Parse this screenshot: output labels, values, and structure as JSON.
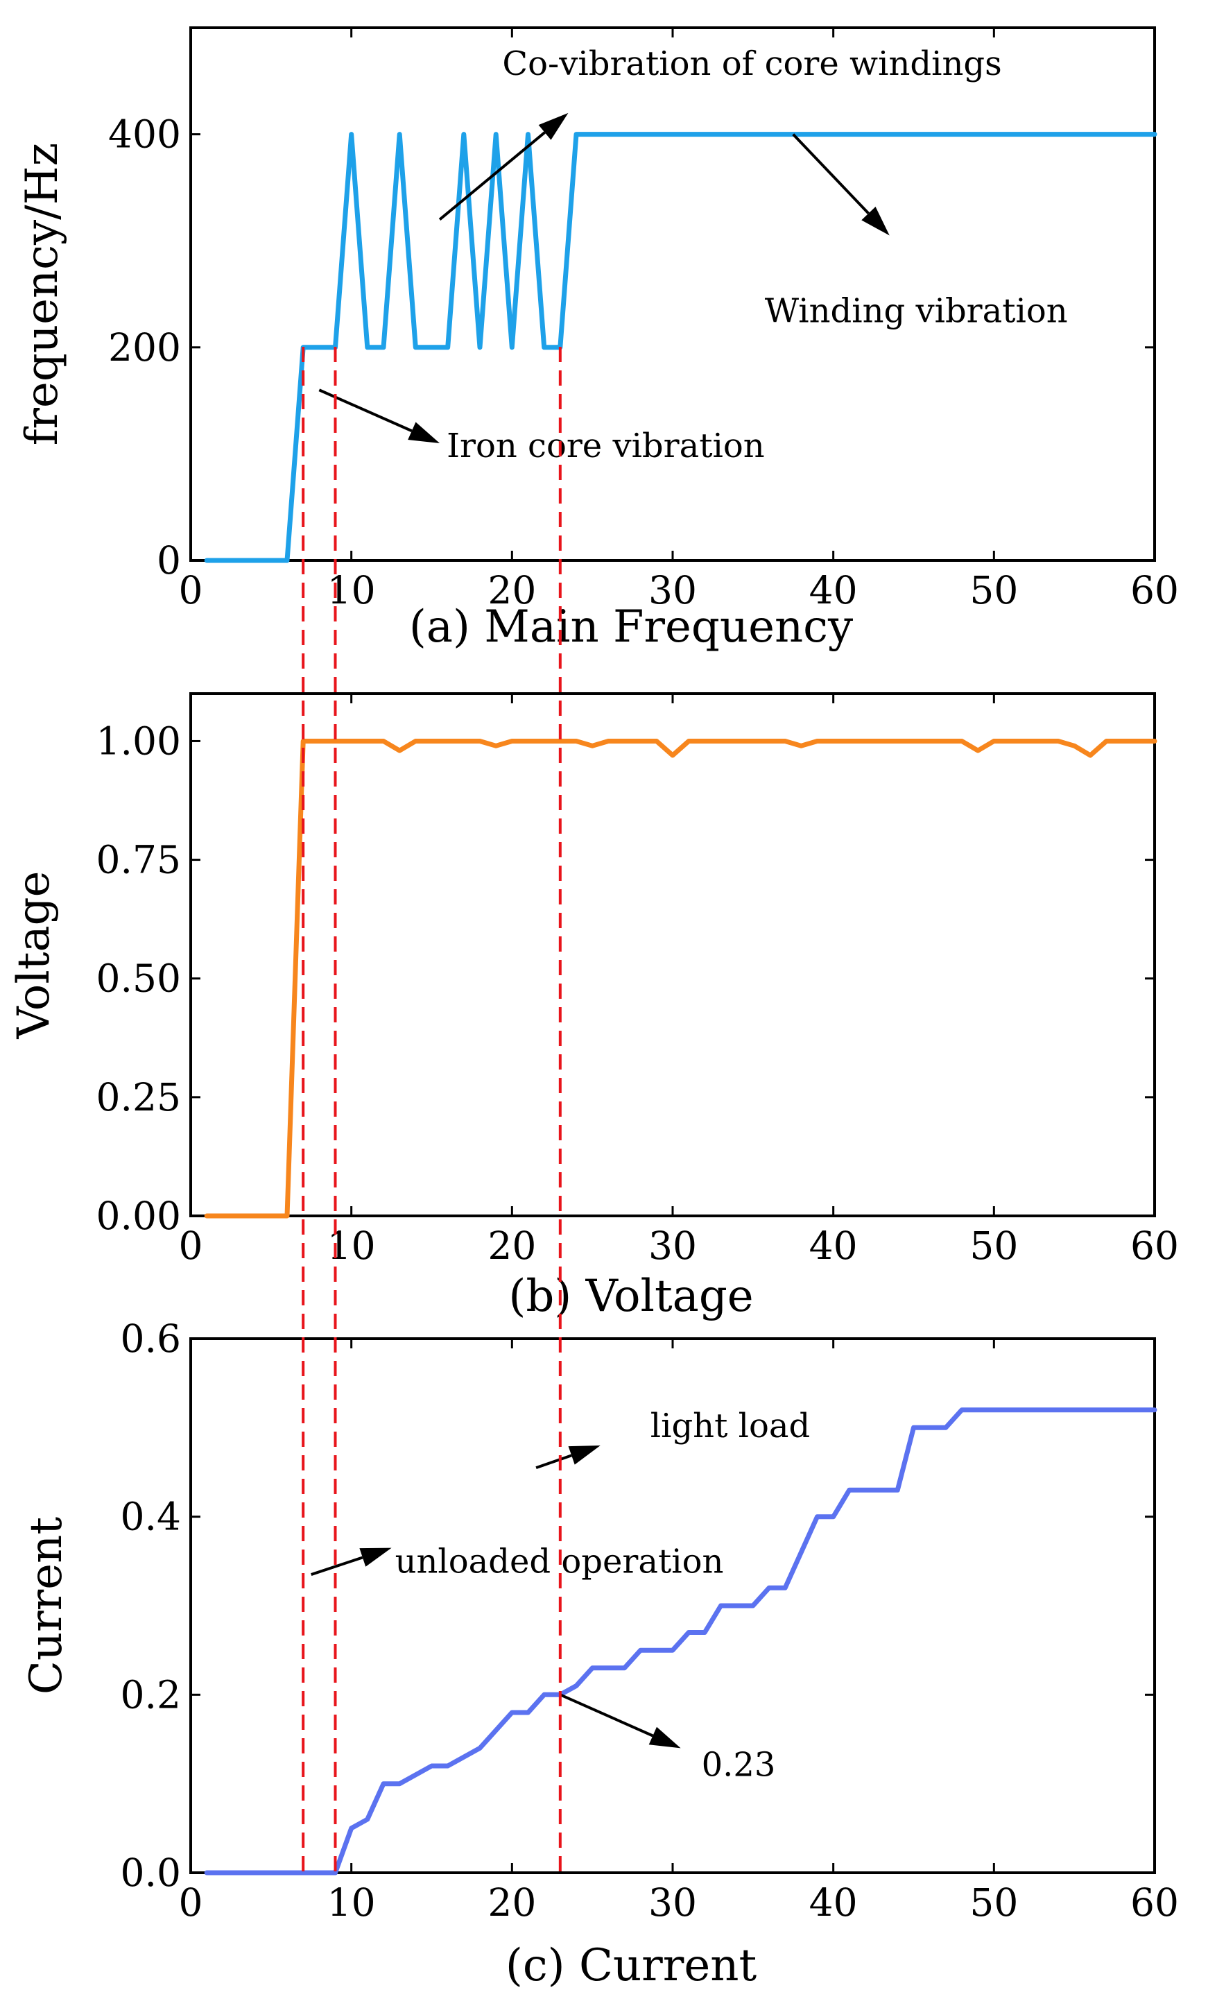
{
  "chart_data": [
    {
      "id": "main_frequency",
      "type": "line",
      "caption": "(a) Main Frequency",
      "ylabel": "frequency/Hz",
      "xlim": [
        0,
        60
      ],
      "ylim": [
        0,
        500
      ],
      "xticks": [
        0,
        10,
        20,
        30,
        40,
        50,
        60
      ],
      "yticks": [
        0,
        200,
        400
      ],
      "xtick_labels": [
        "0",
        "10",
        "20",
        "30",
        "40",
        "50",
        "60"
      ],
      "ytick_labels": [
        "0",
        "200",
        "400"
      ],
      "series": [
        {
          "name": "frequency",
          "color": "#1ea1e9",
          "x": [
            1,
            6,
            7,
            9,
            10,
            11,
            12,
            13,
            14,
            16,
            17,
            18,
            19,
            20,
            21,
            22,
            23,
            24,
            60
          ],
          "y": [
            0,
            0,
            200,
            200,
            400,
            200,
            200,
            400,
            200,
            200,
            400,
            200,
            400,
            200,
            400,
            200,
            200,
            400,
            400
          ]
        }
      ],
      "annotations": [
        {
          "text": "Co-vibration of core windings",
          "x_from": 15.5,
          "y_from": 320,
          "x_to": 23.5,
          "y_to": 420
        },
        {
          "text": "Winding vibration",
          "x_from": 37.5,
          "y_from": 400,
          "x_to": 43.5,
          "y_to": 305
        },
        {
          "text": "Iron core vibration",
          "x_from": 8,
          "y_from": 160,
          "x_to": 15.5,
          "y_to": 110
        }
      ]
    },
    {
      "id": "voltage",
      "type": "line",
      "caption": "(b) Voltage",
      "ylabel": "Voltage",
      "xlim": [
        0,
        60
      ],
      "ylim": [
        0,
        1.1
      ],
      "xticks": [
        0,
        10,
        20,
        30,
        40,
        50,
        60
      ],
      "yticks": [
        0,
        0.25,
        0.5,
        0.75,
        1.0
      ],
      "xtick_labels": [
        "0",
        "10",
        "20",
        "30",
        "40",
        "50",
        "60"
      ],
      "ytick_labels": [
        "0.00",
        "0.25",
        "0.50",
        "0.75",
        "1.00"
      ],
      "series": [
        {
          "name": "voltage",
          "color": "#f7861d",
          "x": [
            1,
            6,
            7,
            12,
            13,
            14,
            18,
            19,
            20,
            24,
            25,
            26,
            29,
            30,
            31,
            37,
            38,
            39,
            48,
            49,
            50,
            54,
            55,
            56,
            57,
            60
          ],
          "y": [
            0,
            0,
            1.0,
            1.0,
            0.98,
            1.0,
            1.0,
            0.99,
            1.0,
            1.0,
            0.99,
            1.0,
            1.0,
            0.97,
            1.0,
            1.0,
            0.99,
            1.0,
            1.0,
            0.98,
            1.0,
            1.0,
            0.99,
            0.97,
            1.0,
            1.0
          ]
        }
      ],
      "annotations": []
    },
    {
      "id": "current",
      "type": "line",
      "caption": "(c) Current",
      "ylabel": "Current",
      "xlim": [
        0,
        60
      ],
      "ylim": [
        0,
        0.6
      ],
      "xticks": [
        0,
        10,
        20,
        30,
        40,
        50,
        60
      ],
      "yticks": [
        0,
        0.2,
        0.4,
        0.6
      ],
      "xtick_labels": [
        "0",
        "10",
        "20",
        "30",
        "40",
        "50",
        "60"
      ],
      "ytick_labels": [
        "0.0",
        "0.2",
        "0.4",
        "0.6"
      ],
      "series": [
        {
          "name": "current",
          "color": "#5b72f0",
          "x": [
            1,
            9,
            10,
            11,
            12,
            13,
            15,
            16,
            18,
            20,
            21,
            22,
            23,
            24,
            25,
            27,
            28,
            30,
            31,
            32,
            33,
            35,
            36,
            37,
            39,
            40,
            41,
            44,
            45,
            47,
            48,
            60
          ],
          "y": [
            0,
            0,
            0.05,
            0.06,
            0.1,
            0.1,
            0.12,
            0.12,
            0.14,
            0.18,
            0.18,
            0.2,
            0.2,
            0.21,
            0.23,
            0.23,
            0.25,
            0.25,
            0.27,
            0.27,
            0.3,
            0.3,
            0.32,
            0.32,
            0.4,
            0.4,
            0.43,
            0.43,
            0.5,
            0.5,
            0.52,
            0.52
          ]
        }
      ],
      "annotations": [
        {
          "text": "light load",
          "x_from": 21.5,
          "y_from": 0.455,
          "x_to": 25.5,
          "y_to": 0.48
        },
        {
          "text": "unloaded operation",
          "x_from": 7.5,
          "y_from": 0.335,
          "x_to": 12.5,
          "y_to": 0.365
        },
        {
          "text": "0.23",
          "x_from": 23,
          "y_from": 0.2,
          "x_to": 30.5,
          "y_to": 0.14
        }
      ]
    }
  ],
  "reference_lines_x": [
    7,
    9,
    23
  ],
  "reference_line_color": "#e8141b",
  "arrow_color": "#000000"
}
